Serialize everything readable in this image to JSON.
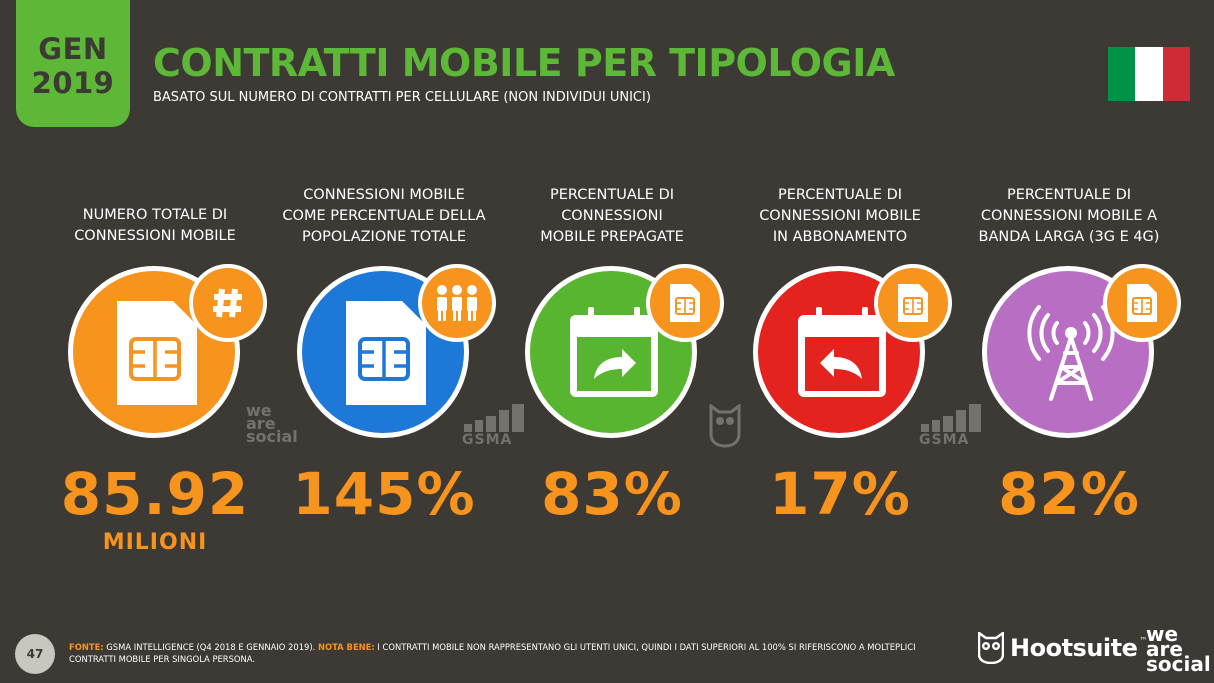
{
  "badge": {
    "month": "GEN",
    "year": "2019"
  },
  "header": {
    "title": "CONTRATTI MOBILE PER TIPOLOGIA",
    "subtitle": "BASATO SUL NUMERO DI CONTRATTI PER CELLULARE (NON INDIVIDUI UNICI)"
  },
  "flag_colors": [
    "#009246",
    "#ffffff",
    "#ce2b37"
  ],
  "colors": {
    "background": "#3d3935",
    "accent_green": "#5cb836",
    "accent_orange": "#f7941d",
    "blue": "#1e78d7",
    "green": "#58b530",
    "red": "#e5231e",
    "purple": "#b86ec2"
  },
  "stats": [
    {
      "label": [
        "NUMERO TOTALE DI",
        "CONNESSIONI MOBILE"
      ],
      "value": "85.92",
      "unit": "MILIONI",
      "icon": "sim-card-icon",
      "badge_icon": "hash-icon",
      "color": "#f7941d"
    },
    {
      "label": [
        "CONNESSIONI MOBILE",
        "COME PERCENTUALE DELLA",
        "POPOLAZIONE TOTALE"
      ],
      "value": "145%",
      "icon": "sim-card-icon",
      "badge_icon": "people-icon",
      "color": "#1e78d7"
    },
    {
      "label": [
        "PERCENTUALE DI",
        "CONNESSIONI",
        "MOBILE PREPAGATE"
      ],
      "value": "83%",
      "icon": "calendar-forward-icon",
      "badge_icon": "sim-card-icon",
      "color": "#58b530"
    },
    {
      "label": [
        "PERCENTUALE DI",
        "CONNESSIONI MOBILE",
        "IN ABBONAMENTO"
      ],
      "value": "17%",
      "icon": "calendar-back-icon",
      "badge_icon": "sim-card-icon",
      "color": "#e5231e"
    },
    {
      "label": [
        "PERCENTUALE DI",
        "CONNESSIONI MOBILE A",
        "BANDA LARGA (3G E 4G)"
      ],
      "value": "82%",
      "icon": "antenna-icon",
      "badge_icon": "sim-card-icon",
      "color": "#b86ec2"
    }
  ],
  "watermarks": {
    "we": "we",
    "are": "are",
    "social": "social",
    "gsma": "GSMA"
  },
  "footer": {
    "page": "47",
    "source_key": "FONTE:",
    "source_text": " GSMA INTELLIGENCE (Q4 2018 E GENNAIO 2019). ",
    "note_key": "NOTA BENE:",
    "note_text": " I CONTRATTI MOBILE NON RAPPRESENTANO GLI UTENTI UNICI, QUINDI I DATI SUPERIORI AL 100% SI RIFERISCONO A MOLTEPLICI CONTRATTI MOBILE PER SINGOLA PERSONA."
  },
  "brand": {
    "hootsuite": "Hootsuite",
    "tm": "™",
    "we": "we",
    "are": "are",
    "social": "social"
  }
}
